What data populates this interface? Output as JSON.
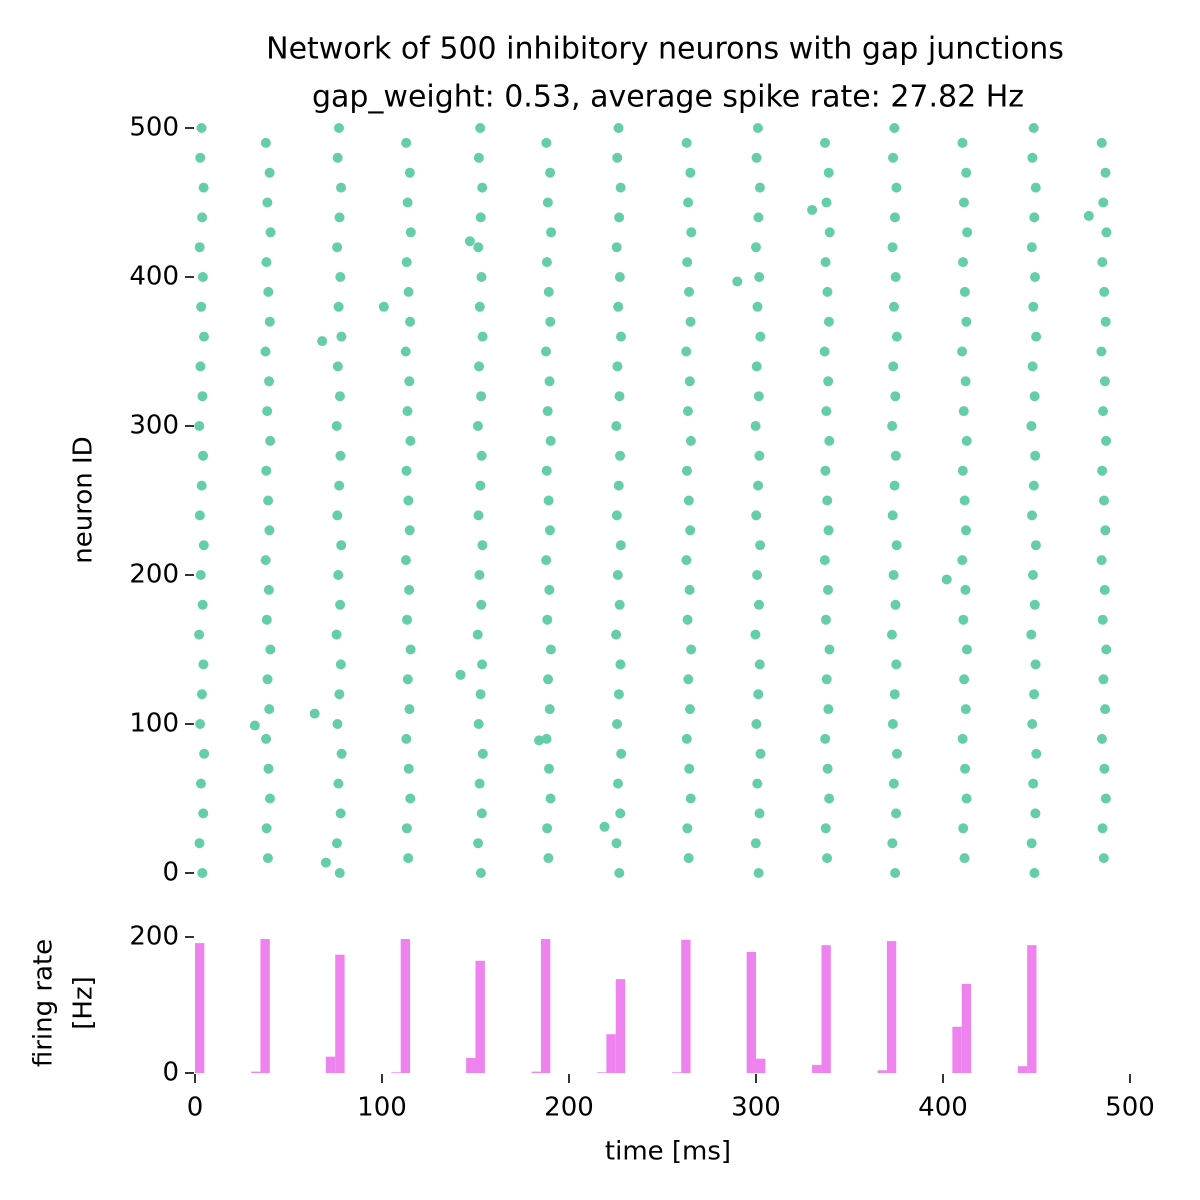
{
  "chart_data": [
    {
      "type": "scatter",
      "title": "Network of 500 inhibitory neurons with gap junctions",
      "subtitle": "gap_weight: 0.53, average spike rate: 27.82 Hz",
      "ylabel": "neuron ID",
      "color": "#66cdaa",
      "xlim": [
        0,
        500
      ],
      "ylim": [
        0,
        500
      ],
      "yticks": [
        0,
        100,
        200,
        300,
        400,
        500
      ],
      "series": [
        {
          "x": [
            3.9,
            2.4,
            4.4,
            3.2,
            4.9,
            2.7,
            3.7,
            4.5,
            2.2,
            4.1,
            3.1,
            4.7,
            2.6,
            3.6,
            4.3,
            2.3,
            4.0,
            2.9,
            4.8,
            3.3,
            4.2,
            2.5,
            3.8,
            4.6,
            2.8,
            3.5
          ],
          "values": [
            0,
            20,
            40,
            60,
            80,
            100,
            120,
            140,
            160,
            180,
            200,
            220,
            240,
            260,
            280,
            300,
            320,
            340,
            360,
            380,
            400,
            420,
            440,
            460,
            480,
            500
          ]
        },
        {
          "x": [
            39.0,
            38.3,
            40.1,
            39.3,
            38.0,
            39.7,
            38.8,
            40.3,
            38.4,
            39.5,
            37.8,
            39.8,
            39.1,
            38.1,
            40.2,
            38.6,
            39.6,
            37.7,
            40.0,
            39.2,
            38.2,
            40.4,
            38.7,
            39.9,
            37.9
          ],
          "values": [
            10,
            30,
            50,
            70,
            90,
            110,
            130,
            150,
            170,
            190,
            210,
            230,
            250,
            270,
            290,
            310,
            330,
            350,
            370,
            390,
            410,
            430,
            450,
            470,
            490
          ]
        },
        {
          "x": [
            77.4,
            75.9,
            77.9,
            76.7,
            78.4,
            76.2,
            77.2,
            78.0,
            75.7,
            77.6,
            76.6,
            78.2,
            76.1,
            77.1,
            77.8,
            75.8,
            77.5,
            76.4,
            78.3,
            76.8,
            77.7,
            76.0,
            77.3,
            78.1,
            76.3,
            77.0
          ],
          "values": [
            0,
            20,
            40,
            60,
            80,
            100,
            120,
            140,
            160,
            180,
            200,
            220,
            240,
            260,
            280,
            300,
            320,
            340,
            360,
            380,
            400,
            420,
            440,
            460,
            480,
            500
          ]
        },
        {
          "x": [
            114.0,
            113.3,
            115.1,
            114.3,
            113.0,
            114.7,
            113.8,
            115.3,
            113.4,
            114.5,
            112.8,
            114.8,
            114.1,
            113.1,
            115.2,
            113.6,
            114.6,
            112.7,
            115.0,
            114.2,
            113.2,
            115.4,
            113.7,
            114.9,
            112.9
          ],
          "values": [
            10,
            30,
            50,
            70,
            90,
            110,
            130,
            150,
            170,
            190,
            210,
            230,
            250,
            270,
            290,
            310,
            330,
            350,
            370,
            390,
            410,
            430,
            450,
            470,
            490
          ]
        },
        {
          "x": [
            152.9,
            151.4,
            153.4,
            152.2,
            153.9,
            151.7,
            152.7,
            153.5,
            151.2,
            153.1,
            152.1,
            153.7,
            151.6,
            152.6,
            153.3,
            151.3,
            153.0,
            151.9,
            153.8,
            152.3,
            153.2,
            151.5,
            152.8,
            153.6,
            151.8,
            152.5
          ],
          "values": [
            0,
            20,
            40,
            60,
            80,
            100,
            120,
            140,
            160,
            180,
            200,
            220,
            240,
            260,
            280,
            300,
            320,
            340,
            360,
            380,
            400,
            420,
            440,
            460,
            480,
            500
          ]
        },
        {
          "x": [
            189.0,
            188.3,
            190.1,
            189.3,
            188.0,
            189.7,
            188.8,
            190.3,
            188.4,
            189.5,
            187.8,
            189.8,
            189.1,
            188.1,
            190.2,
            188.6,
            189.6,
            187.7,
            190.0,
            189.2,
            188.2,
            190.4,
            188.7,
            189.9,
            187.9
          ],
          "values": [
            10,
            30,
            50,
            70,
            90,
            110,
            130,
            150,
            170,
            190,
            210,
            230,
            250,
            270,
            290,
            310,
            330,
            350,
            370,
            390,
            410,
            430,
            450,
            470,
            490
          ]
        },
        {
          "x": [
            226.9,
            225.4,
            227.4,
            226.2,
            227.9,
            225.7,
            226.7,
            227.5,
            225.2,
            227.1,
            226.1,
            227.7,
            225.6,
            226.6,
            227.3,
            225.3,
            227.0,
            225.9,
            227.8,
            226.3,
            227.2,
            225.5,
            226.8,
            227.6,
            225.8,
            226.5
          ],
          "values": [
            0,
            20,
            40,
            60,
            80,
            100,
            120,
            140,
            160,
            180,
            200,
            220,
            240,
            260,
            280,
            300,
            320,
            340,
            360,
            380,
            400,
            420,
            440,
            460,
            480,
            500
          ]
        },
        {
          "x": [
            264.0,
            263.3,
            265.1,
            264.3,
            263.0,
            264.7,
            263.8,
            265.3,
            263.4,
            264.5,
            262.8,
            264.8,
            264.1,
            263.1,
            265.2,
            263.6,
            264.6,
            262.7,
            265.0,
            264.2,
            263.2,
            265.4,
            263.7,
            264.9,
            262.9
          ],
          "values": [
            10,
            30,
            50,
            70,
            90,
            110,
            130,
            150,
            170,
            190,
            210,
            230,
            250,
            270,
            290,
            310,
            330,
            350,
            370,
            390,
            410,
            430,
            450,
            470,
            490
          ]
        },
        {
          "x": [
            301.4,
            299.9,
            301.9,
            300.7,
            302.4,
            300.2,
            301.2,
            302.0,
            299.7,
            301.6,
            300.6,
            302.2,
            300.1,
            301.1,
            301.8,
            299.8,
            301.5,
            300.4,
            302.3,
            300.8,
            301.7,
            300.0,
            301.3,
            302.1,
            300.3,
            301.0
          ],
          "values": [
            0,
            20,
            40,
            60,
            80,
            100,
            120,
            140,
            160,
            180,
            200,
            220,
            240,
            260,
            280,
            300,
            320,
            340,
            360,
            380,
            400,
            420,
            440,
            460,
            480,
            500
          ]
        },
        {
          "x": [
            338.0,
            337.3,
            339.1,
            338.3,
            337.0,
            338.7,
            337.8,
            339.3,
            337.4,
            338.5,
            336.8,
            338.8,
            338.1,
            337.1,
            339.2,
            337.6,
            338.6,
            336.7,
            339.0,
            338.2,
            337.2,
            339.4,
            337.7,
            338.9,
            336.9
          ],
          "values": [
            10,
            30,
            50,
            70,
            90,
            110,
            130,
            150,
            170,
            190,
            210,
            230,
            250,
            270,
            290,
            310,
            330,
            350,
            370,
            390,
            410,
            430,
            450,
            470,
            490
          ]
        },
        {
          "x": [
            374.4,
            372.9,
            374.9,
            373.7,
            375.4,
            373.2,
            374.2,
            375.0,
            372.7,
            374.6,
            373.6,
            375.2,
            373.1,
            374.1,
            374.8,
            372.8,
            374.5,
            373.4,
            375.3,
            373.8,
            374.7,
            373.0,
            374.3,
            375.1,
            373.3,
            374.0
          ],
          "values": [
            0,
            20,
            40,
            60,
            80,
            100,
            120,
            140,
            160,
            180,
            200,
            220,
            240,
            260,
            280,
            300,
            320,
            340,
            360,
            380,
            400,
            420,
            440,
            460,
            480,
            500
          ]
        },
        {
          "x": [
            411.5,
            410.8,
            412.6,
            411.8,
            410.5,
            412.2,
            411.3,
            412.8,
            410.9,
            412.0,
            410.3,
            412.3,
            411.6,
            410.6,
            412.7,
            411.1,
            412.1,
            410.2,
            412.5,
            411.7,
            410.7,
            412.9,
            411.2,
            412.4,
            410.4
          ],
          "values": [
            10,
            30,
            50,
            70,
            90,
            110,
            130,
            150,
            170,
            190,
            210,
            230,
            250,
            270,
            290,
            310,
            330,
            350,
            370,
            390,
            410,
            430,
            450,
            470,
            490
          ]
        },
        {
          "x": [
            448.9,
            447.4,
            449.4,
            448.2,
            449.9,
            447.7,
            448.7,
            449.5,
            447.2,
            449.1,
            448.1,
            449.7,
            447.6,
            448.6,
            449.3,
            447.3,
            449.0,
            447.9,
            449.8,
            448.3,
            449.2,
            447.5,
            448.8,
            449.6,
            447.8,
            448.5
          ],
          "values": [
            0,
            20,
            40,
            60,
            80,
            100,
            120,
            140,
            160,
            180,
            200,
            220,
            240,
            260,
            280,
            300,
            320,
            340,
            360,
            380,
            400,
            420,
            440,
            460,
            480,
            500
          ]
        },
        {
          "x": [
            486.0,
            485.3,
            487.1,
            486.3,
            485.0,
            486.7,
            485.8,
            487.3,
            485.4,
            486.5,
            484.8,
            486.8,
            486.1,
            485.1,
            487.2,
            485.6,
            486.6,
            484.7,
            487.0,
            486.2,
            485.2,
            487.4,
            485.7,
            486.9,
            484.9
          ],
          "values": [
            10,
            30,
            50,
            70,
            90,
            110,
            130,
            150,
            170,
            190,
            210,
            230,
            250,
            270,
            290,
            310,
            330,
            350,
            370,
            390,
            410,
            430,
            450,
            470,
            490
          ]
        },
        {
          "x": [
            64,
            70,
            142,
            219,
            330,
            402,
            478,
            32,
            101,
            68,
            147,
            184,
            290
          ],
          "values": [
            107,
            7,
            133,
            31,
            445,
            197,
            441,
            99,
            380,
            357,
            424,
            89,
            397
          ]
        }
      ]
    },
    {
      "type": "histogram",
      "ylabel": [
        "firing rate",
        "[Hz]"
      ],
      "xlabel": "time [ms]",
      "color": "#ee82ee",
      "xlim": [
        0,
        500
      ],
      "xticks": [
        0,
        100,
        200,
        300,
        400,
        500
      ],
      "ylim": [
        0,
        200
      ],
      "yticks": [
        0,
        200
      ],
      "bins": [
        0,
        5,
        10,
        15,
        20,
        25,
        30,
        35,
        40,
        45,
        50,
        55,
        60,
        65,
        70,
        75,
        80,
        85,
        90,
        95,
        100,
        105,
        110,
        115,
        120,
        125,
        130,
        135,
        140,
        145,
        150,
        155,
        160,
        165,
        170,
        175,
        180,
        185,
        190,
        195,
        200,
        205,
        210,
        215,
        220,
        225,
        230,
        235,
        240,
        245,
        250,
        255,
        260,
        265,
        270,
        275,
        280,
        285,
        290,
        295,
        300,
        305,
        310,
        315,
        320,
        325,
        330,
        335,
        340,
        345,
        350,
        355,
        360,
        365,
        370,
        375,
        380,
        385,
        390,
        395,
        400,
        405,
        410,
        415,
        420,
        425,
        430,
        435,
        440,
        445,
        450,
        455,
        460,
        465,
        470,
        475,
        480,
        485,
        490,
        495,
        500
      ],
      "values": [
        191,
        0,
        0,
        0,
        0,
        0,
        2,
        197,
        0,
        0,
        0,
        0,
        0,
        0,
        24,
        174,
        0,
        0,
        0,
        0,
        0,
        1,
        197,
        0,
        0,
        0,
        0,
        0,
        0,
        22,
        165,
        0,
        0,
        0,
        0,
        0,
        2,
        197,
        0,
        0,
        0,
        0,
        0,
        1,
        57,
        138,
        0,
        0,
        0,
        0,
        0,
        1,
        196,
        0,
        0,
        0,
        0,
        0,
        0,
        178,
        21,
        0,
        0,
        0,
        0,
        0,
        12,
        188,
        0,
        0,
        0,
        0,
        0,
        4,
        194,
        0,
        0,
        0,
        0,
        0,
        0,
        68,
        131,
        0,
        0,
        0,
        0,
        0,
        10,
        188,
        0,
        0,
        0,
        0,
        0,
        0,
        0,
        0,
        0,
        0
      ]
    }
  ]
}
